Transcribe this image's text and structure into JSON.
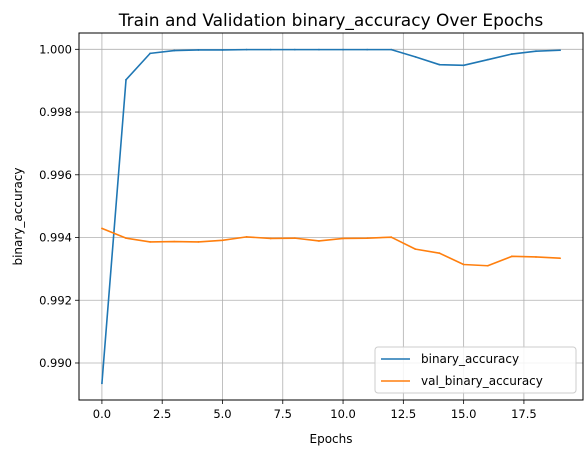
{
  "chart_data": {
    "type": "line",
    "title": "Train and Validation binary_accuracy Over Epochs",
    "xlabel": "Epochs",
    "ylabel": "binary_accuracy",
    "xlim": [
      -0.95,
      19.95
    ],
    "ylim": [
      0.98882,
      1.00052
    ],
    "x_ticks": [
      0,
      2.5,
      5,
      7.5,
      10,
      12.5,
      15,
      17.5
    ],
    "x_tick_labels": [
      "0.0",
      "2.5",
      "5.0",
      "7.5",
      "10.0",
      "12.5",
      "15.0",
      "17.5"
    ],
    "y_ticks": [
      0.99,
      0.992,
      0.994,
      0.996,
      0.998,
      1.0
    ],
    "y_tick_labels": [
      "0.990",
      "0.992",
      "0.994",
      "0.996",
      "0.998",
      "1.000"
    ],
    "grid": true,
    "legend_position": "lower-right",
    "x": [
      0,
      1,
      2,
      3,
      4,
      5,
      6,
      7,
      8,
      9,
      10,
      11,
      12,
      13,
      14,
      15,
      16,
      17,
      18,
      19
    ],
    "series": [
      {
        "name": "binary_accuracy",
        "color": "#1f77b4",
        "values": [
          0.98935,
          0.99903,
          0.99987,
          0.99996,
          0.99998,
          0.99998,
          0.99999,
          0.99999,
          0.99999,
          0.99999,
          0.99999,
          0.99999,
          0.99999,
          0.99976,
          0.99951,
          0.99949,
          0.99967,
          0.99985,
          0.99994,
          0.99997
        ]
      },
      {
        "name": "val_binary_accuracy",
        "color": "#ff7f0e",
        "values": [
          0.99429,
          0.99398,
          0.99386,
          0.99387,
          0.99386,
          0.99391,
          0.99402,
          0.99397,
          0.99398,
          0.99389,
          0.99397,
          0.99398,
          0.99401,
          0.99363,
          0.9935,
          0.99314,
          0.9931,
          0.9934,
          0.99338,
          0.99334
        ]
      }
    ]
  }
}
